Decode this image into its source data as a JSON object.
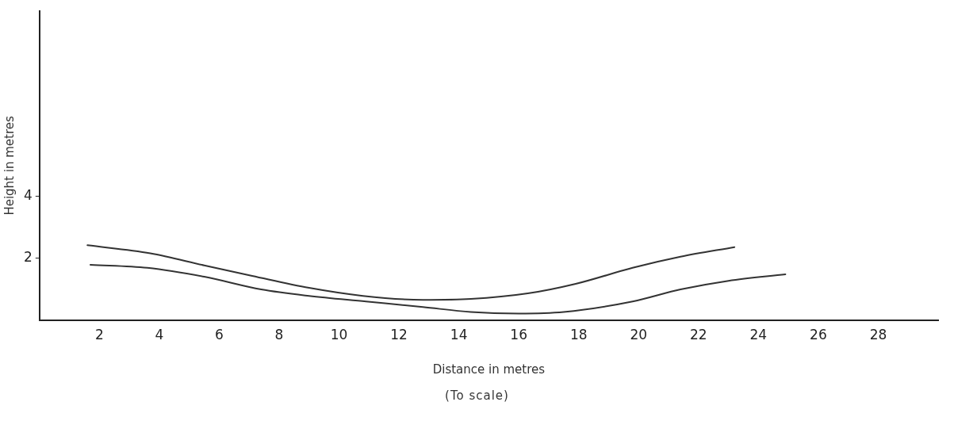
{
  "chart_data": {
    "type": "line",
    "xlabel": "Distance in metres",
    "ylabel": "Height in metres",
    "annotations": [
      "(To scale)"
    ],
    "xlim": [
      0,
      30
    ],
    "xticks": [
      2,
      4,
      6,
      8,
      10,
      12,
      14,
      16,
      18,
      20,
      22,
      24,
      26,
      28
    ],
    "ylim": [
      0,
      10
    ],
    "yticks": [
      2,
      4
    ],
    "grid": false,
    "legend": false,
    "marker": "none",
    "line_style": "solid",
    "series": [
      {
        "color": "#333333",
        "x": [
          1.6,
          3.7,
          5.5,
          7.1,
          9,
          10.8,
          12.8,
          14.4,
          16.3,
          17.9,
          19.8,
          21.4,
          23.2
        ],
        "values": [
          2.42,
          2.16,
          1.77,
          1.43,
          1.04,
          0.78,
          0.65,
          0.68,
          0.86,
          1.17,
          1.69,
          2.05,
          2.36
        ]
      },
      {
        "color": "#333333",
        "x": [
          1.7,
          3.6,
          5.5,
          7.4,
          9,
          10.9,
          12.8,
          14.4,
          16,
          17.5,
          19.8,
          21.4,
          23,
          24.9
        ],
        "values": [
          1.79,
          1.69,
          1.4,
          0.99,
          0.78,
          0.6,
          0.42,
          0.26,
          0.21,
          0.26,
          0.6,
          0.99,
          1.27,
          1.48
        ]
      }
    ]
  }
}
